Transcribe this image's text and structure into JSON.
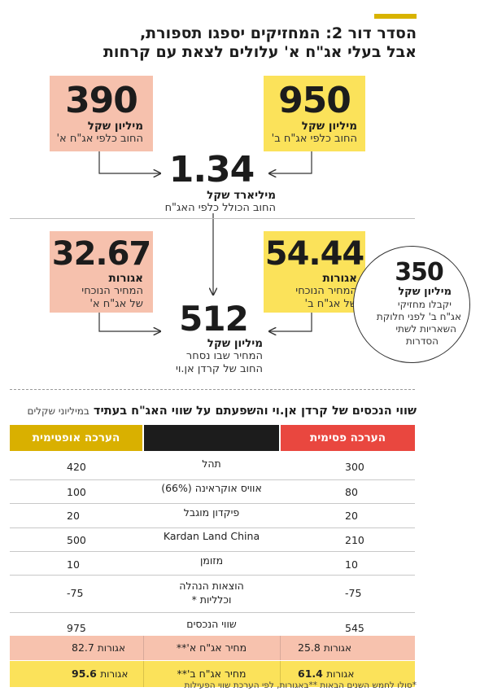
{
  "title": {
    "line1": "הסדר דור 2: המחזיקים יספגו תספורת,",
    "line2": "אבל בעלי אג\"ח א' עלולים לצאת עם קרחות"
  },
  "top": {
    "right_box": {
      "number": "950",
      "unit": "מיליון שקל",
      "caption": "החוב כלפי אג\"ח ב'"
    },
    "left_box": {
      "number": "390",
      "unit": "מיליון שקל",
      "caption": "החוב כלפי אג\"ח א'"
    },
    "total": {
      "number": "1.34",
      "unit": "מיליארד שקל",
      "caption": "החוב הכולל כלפי האג\"ח"
    }
  },
  "middle": {
    "right_box": {
      "number": "54.44",
      "unit": "אגורות",
      "caption1": "המחיר הנוכחי",
      "caption2": "של אג\"ח ב'"
    },
    "left_box": {
      "number": "32.67",
      "unit": "אגורות",
      "caption1": "המחיר הנוכחי",
      "caption2": "של אג\"ח א'"
    },
    "total": {
      "number": "512",
      "unit": "מיליון שקל",
      "caption1": "המחיר שבו נסחר",
      "caption2": "החוב של קרדן אן.וי"
    },
    "circle": {
      "number": "350",
      "unit": "מיליון שקל",
      "line1": "יקבלו מחזיקי",
      "line2": "אג\"ח ב' לפני חלוקת",
      "line3": "השאריות לשתי",
      "line4": "הסדרות"
    }
  },
  "table": {
    "title": "שווי הנכסים של קרדן אן.וי והשפעתם על שווי האג\"ח בעתיד",
    "title_unit": "במיליוני שקלים",
    "headers": {
      "pessimistic": "הערכה פסימית",
      "optimistic": "הערכה אופטימית"
    },
    "rows": [
      {
        "name": "תהל",
        "pessimistic": "300",
        "optimistic": "420"
      },
      {
        "name": "אוויס אוקראינה (66%)",
        "pessimistic": "80",
        "optimistic": "100"
      },
      {
        "name": "פיקדון מוגבל",
        "pessimistic": "20",
        "optimistic": "20"
      },
      {
        "name": "Kardan Land China",
        "pessimistic": "210",
        "optimistic": "500"
      },
      {
        "name": "מזומן",
        "pessimistic": "10",
        "optimistic": "10"
      },
      {
        "name": "הוצאות הנהלה",
        "name2": "וכלליות *",
        "pessimistic": "-75",
        "optimistic": "-75"
      },
      {
        "name": "שווי הנכסים",
        "pessimistic": "545",
        "optimistic": "975"
      }
    ],
    "price_a": {
      "name": "מחיר אג\"ח א'**",
      "pessimistic": "25.8",
      "optimistic": "82.7",
      "unit": "אגורות"
    },
    "price_b": {
      "name": "מחיר אג\"ח ב'**",
      "pessimistic": "61.4",
      "optimistic": "95.6",
      "unit": "אגורות"
    }
  },
  "footnote": "*סולו לחמש השנים הבאות **באגורות, לפי הערכת שווי הפעילות"
}
